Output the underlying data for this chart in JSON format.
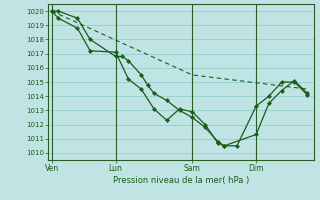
{
  "background_color": "#c0e4e4",
  "plot_bg_color": "#c0e4e4",
  "grid_color": "#90c8c8",
  "line_color": "#1a5c1a",
  "vline_color": "#2a5c2a",
  "xlabel": "Pression niveau de la mer( hPa )",
  "ylim": [
    1009.5,
    1020.5
  ],
  "yticks": [
    1010,
    1011,
    1012,
    1013,
    1014,
    1015,
    1016,
    1017,
    1018,
    1019,
    1020
  ],
  "xtick_labels": [
    "Ven",
    "Lun",
    "Sam",
    "Dim"
  ],
  "xtick_positions": [
    0,
    5,
    11,
    16
  ],
  "xlim": [
    -0.3,
    20.5
  ],
  "vline_positions": [
    0,
    5,
    11,
    16
  ],
  "series1_x": [
    0,
    0.5,
    2,
    3,
    5,
    5.5,
    6,
    7,
    7.5,
    8,
    9,
    10,
    11,
    12,
    13,
    13.5,
    14.5,
    16,
    17,
    18,
    19,
    20
  ],
  "series1_y": [
    1020,
    1020,
    1019.5,
    1018,
    1016.8,
    1016.8,
    1016.5,
    1015.5,
    1014.8,
    1014.2,
    1013.7,
    1013.0,
    1012.5,
    1011.8,
    1010.8,
    1010.5,
    1010.5,
    1013.3,
    1014.0,
    1015.0,
    1015.0,
    1014.1
  ],
  "series2_x": [
    0,
    0.5,
    2,
    3,
    5,
    6,
    7,
    8,
    9,
    10,
    11,
    12,
    13,
    13.5,
    16,
    17,
    18,
    19,
    20
  ],
  "series2_y": [
    1020,
    1019.5,
    1018.8,
    1017.2,
    1017.1,
    1015.2,
    1014.5,
    1013.1,
    1012.3,
    1013.1,
    1012.9,
    1012.0,
    1010.7,
    1010.5,
    1011.3,
    1013.5,
    1014.4,
    1015.1,
    1014.2
  ],
  "series3_x": [
    0,
    11,
    20
  ],
  "series3_y": [
    1020,
    1015.5,
    1014.5
  ]
}
